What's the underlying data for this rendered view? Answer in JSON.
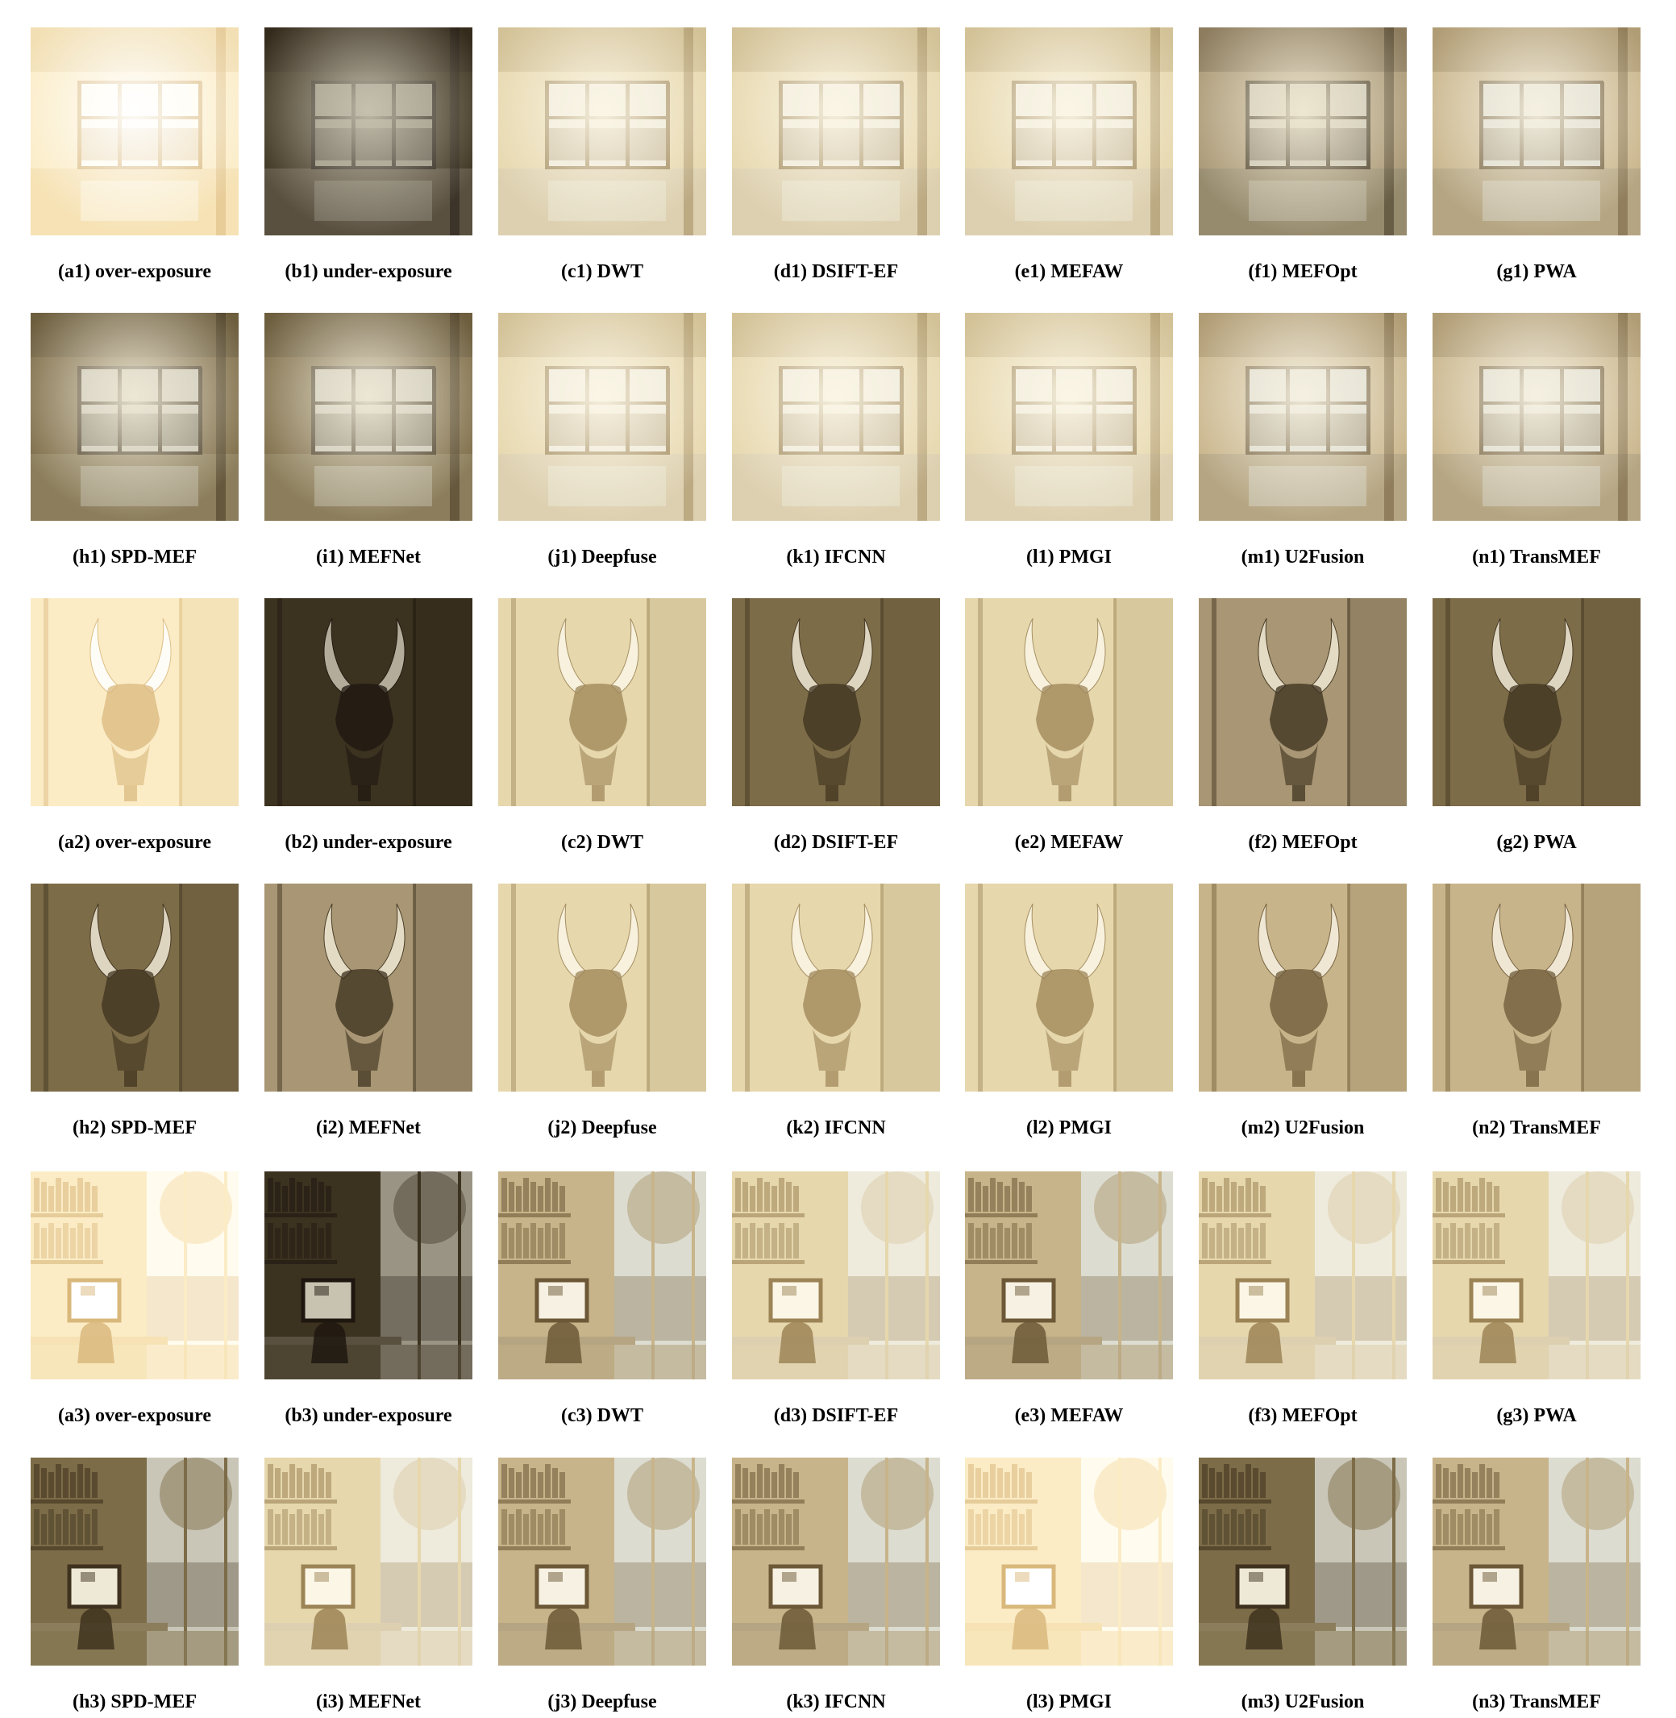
{
  "figure": {
    "rows": [
      {
        "scene": "hall",
        "panels": [
          {
            "label": "(a1) over-exposure",
            "tone": "over"
          },
          {
            "label": "(b1) under-exposure",
            "tone": "under"
          },
          {
            "label": "(c1) DWT",
            "tone": "bright"
          },
          {
            "label": "(d1) DSIFT-EF",
            "tone": "bright"
          },
          {
            "label": "(e1) MEFAW",
            "tone": "bright"
          },
          {
            "label": "(f1) MEFOpt",
            "tone": "vignette"
          },
          {
            "label": "(g1) PWA",
            "tone": "normal"
          }
        ]
      },
      {
        "scene": "hall",
        "panels": [
          {
            "label": "(h1) SPD-MEF",
            "tone": "dark"
          },
          {
            "label": "(i1) MEFNet",
            "tone": "dark"
          },
          {
            "label": "(j1) Deepfuse",
            "tone": "bright"
          },
          {
            "label": "(k1) IFCNN",
            "tone": "bright"
          },
          {
            "label": "(l1) PMGI",
            "tone": "bright"
          },
          {
            "label": "(m1) U2Fusion",
            "tone": "normal"
          },
          {
            "label": "(n1) TransMEF",
            "tone": "normal"
          }
        ]
      },
      {
        "scene": "bull",
        "panels": [
          {
            "label": "(a2) over-exposure",
            "tone": "over"
          },
          {
            "label": "(b2) under-exposure",
            "tone": "under"
          },
          {
            "label": "(c2) DWT",
            "tone": "bright"
          },
          {
            "label": "(d2) DSIFT-EF",
            "tone": "dark"
          },
          {
            "label": "(e2) MEFAW",
            "tone": "bright"
          },
          {
            "label": "(f2) MEFOpt",
            "tone": "vignette"
          },
          {
            "label": "(g2) PWA",
            "tone": "dark"
          }
        ]
      },
      {
        "scene": "bull",
        "panels": [
          {
            "label": "(h2) SPD-MEF",
            "tone": "dark"
          },
          {
            "label": "(i2) MEFNet",
            "tone": "vignette"
          },
          {
            "label": "(j2) Deepfuse",
            "tone": "bright"
          },
          {
            "label": "(k2) IFCNN",
            "tone": "bright"
          },
          {
            "label": "(l2) PMGI",
            "tone": "bright"
          },
          {
            "label": "(m2) U2Fusion",
            "tone": "normal"
          },
          {
            "label": "(n2) TransMEF",
            "tone": "normal"
          }
        ]
      },
      {
        "scene": "office",
        "panels": [
          {
            "label": "(a3) over-exposure",
            "tone": "over"
          },
          {
            "label": "(b3) under-exposure",
            "tone": "under"
          },
          {
            "label": "(c3) DWT",
            "tone": "normal"
          },
          {
            "label": "(d3) DSIFT-EF",
            "tone": "bright"
          },
          {
            "label": "(e3) MEFAW",
            "tone": "normal"
          },
          {
            "label": "(f3) MEFOpt",
            "tone": "bright"
          },
          {
            "label": "(g3) PWA",
            "tone": "bright"
          }
        ]
      },
      {
        "scene": "office",
        "panels": [
          {
            "label": "(h3) SPD-MEF",
            "tone": "dark"
          },
          {
            "label": "(i3) MEFNet",
            "tone": "bright"
          },
          {
            "label": "(j3) Deepfuse",
            "tone": "normal"
          },
          {
            "label": "(k3) IFCNN",
            "tone": "normal"
          },
          {
            "label": "(l3) PMGI",
            "tone": "over"
          },
          {
            "label": "(m3) U2Fusion",
            "tone": "dark"
          },
          {
            "label": "(n3) TransMEF",
            "tone": "normal"
          }
        ]
      }
    ],
    "tones": {
      "over": {
        "wall": "#fbecc6",
        "floor": "#f6e2b4",
        "dark": "#d9b87c",
        "glass": "#fffbee",
        "glow": "#ffffff"
      },
      "under": {
        "wall": "#3c3220",
        "floor": "#5a5040",
        "dark": "#1e1710",
        "glass": "#9a9484",
        "glow": "#c8c2b0"
      },
      "bright": {
        "wall": "#e6d7ad",
        "floor": "#ddd0b0",
        "dark": "#9c8456",
        "glass": "#eeeadc",
        "glow": "#fbf6e6"
      },
      "normal": {
        "wall": "#c8b48a",
        "floor": "#b5a582",
        "dark": "#6c5836",
        "glass": "#dcdcd0",
        "glow": "#f6f1e2"
      },
      "dark": {
        "wall": "#7d6c48",
        "floor": "#8c7e5c",
        "dark": "#3e321e",
        "glass": "#c9c6b8",
        "glow": "#eee8d6"
      },
      "vignette": {
        "wall": "#a89674",
        "floor": "#978b6e",
        "dark": "#3a2f1c",
        "glass": "#c8c4b4",
        "glow": "#efe8d2"
      }
    }
  }
}
